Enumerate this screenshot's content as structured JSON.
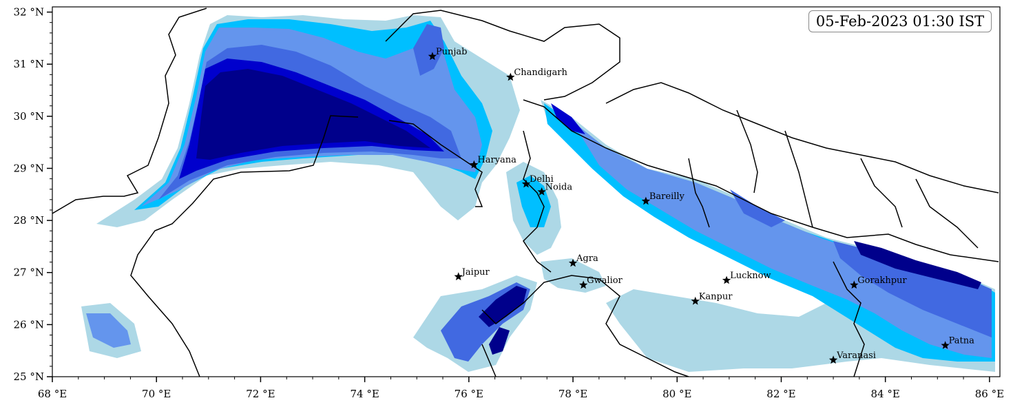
{
  "timestamp": "05-Feb-2023 01:30 IST",
  "axes": {
    "x_ticks": [
      "68 °E",
      "70 °E",
      "72 °E",
      "74 °E",
      "76 °E",
      "78 °E",
      "80 °E",
      "82 °E",
      "84 °E",
      "86 °E"
    ],
    "y_ticks": [
      "32 °N",
      "31 °N",
      "30 °N",
      "29 °N",
      "28 °N",
      "27 °N",
      "26 °N",
      "25 °N"
    ]
  },
  "extent": {
    "lon": [
      68,
      86.2
    ],
    "lat": [
      25,
      32.1
    ]
  },
  "cities": [
    {
      "name": "Punjab",
      "lon": 75.3,
      "lat": 31.15
    },
    {
      "name": "Chandigarh",
      "lon": 76.8,
      "lat": 30.75
    },
    {
      "name": "Haryana",
      "lon": 76.1,
      "lat": 29.07
    },
    {
      "name": "Delhi",
      "lon": 77.1,
      "lat": 28.7
    },
    {
      "name": "Noida",
      "lon": 77.4,
      "lat": 28.55
    },
    {
      "name": "Bareilly",
      "lon": 79.4,
      "lat": 28.37
    },
    {
      "name": "Agra",
      "lon": 78.0,
      "lat": 27.18
    },
    {
      "name": "Jaipur",
      "lon": 75.8,
      "lat": 26.92
    },
    {
      "name": "Gwalior",
      "lon": 78.2,
      "lat": 26.76
    },
    {
      "name": "Lucknow",
      "lon": 80.95,
      "lat": 26.85
    },
    {
      "name": "Kanpur",
      "lon": 80.35,
      "lat": 26.45
    },
    {
      "name": "Gorakhpur",
      "lon": 83.4,
      "lat": 26.76
    },
    {
      "name": "Patna",
      "lon": 85.15,
      "lat": 25.6
    },
    {
      "name": "Varanasi",
      "lon": 83.0,
      "lat": 25.32
    }
  ],
  "colors": {
    "level1": "#add8e6",
    "level2": "#00bfff",
    "level3": "#6495ed",
    "level4": "#4169e1",
    "level5": "#0000cd",
    "level6": "#00008b",
    "border": "#000000"
  }
}
